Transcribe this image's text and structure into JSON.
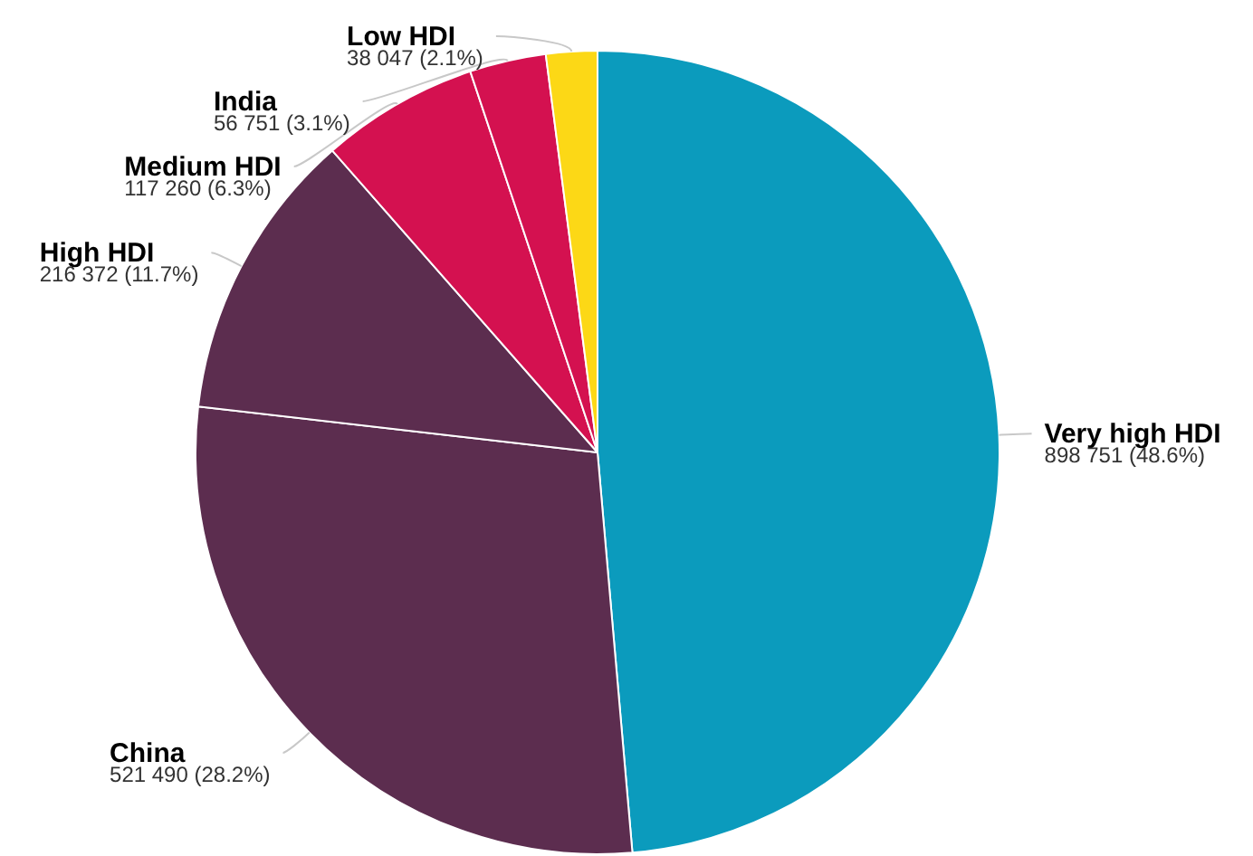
{
  "chart_data": {
    "type": "pie",
    "categories": [
      "Very high HDI",
      "China",
      "High HDI",
      "Medium HDI",
      "India",
      "Low HDI"
    ],
    "values": [
      898751,
      521490,
      216372,
      117260,
      56751,
      38047
    ],
    "colors": [
      "#0b9bbd",
      "#5c2d4f",
      "#5c2d4f",
      "#d41150",
      "#d41150",
      "#fcd816"
    ],
    "value_labels": [
      "898 751 (48.6%)",
      "521 490 (28.2%)",
      "216 372 (11.7%)",
      "117 260 (6.3%)",
      "56 751 (3.1%)",
      "38 047 (2.1%)"
    ]
  }
}
